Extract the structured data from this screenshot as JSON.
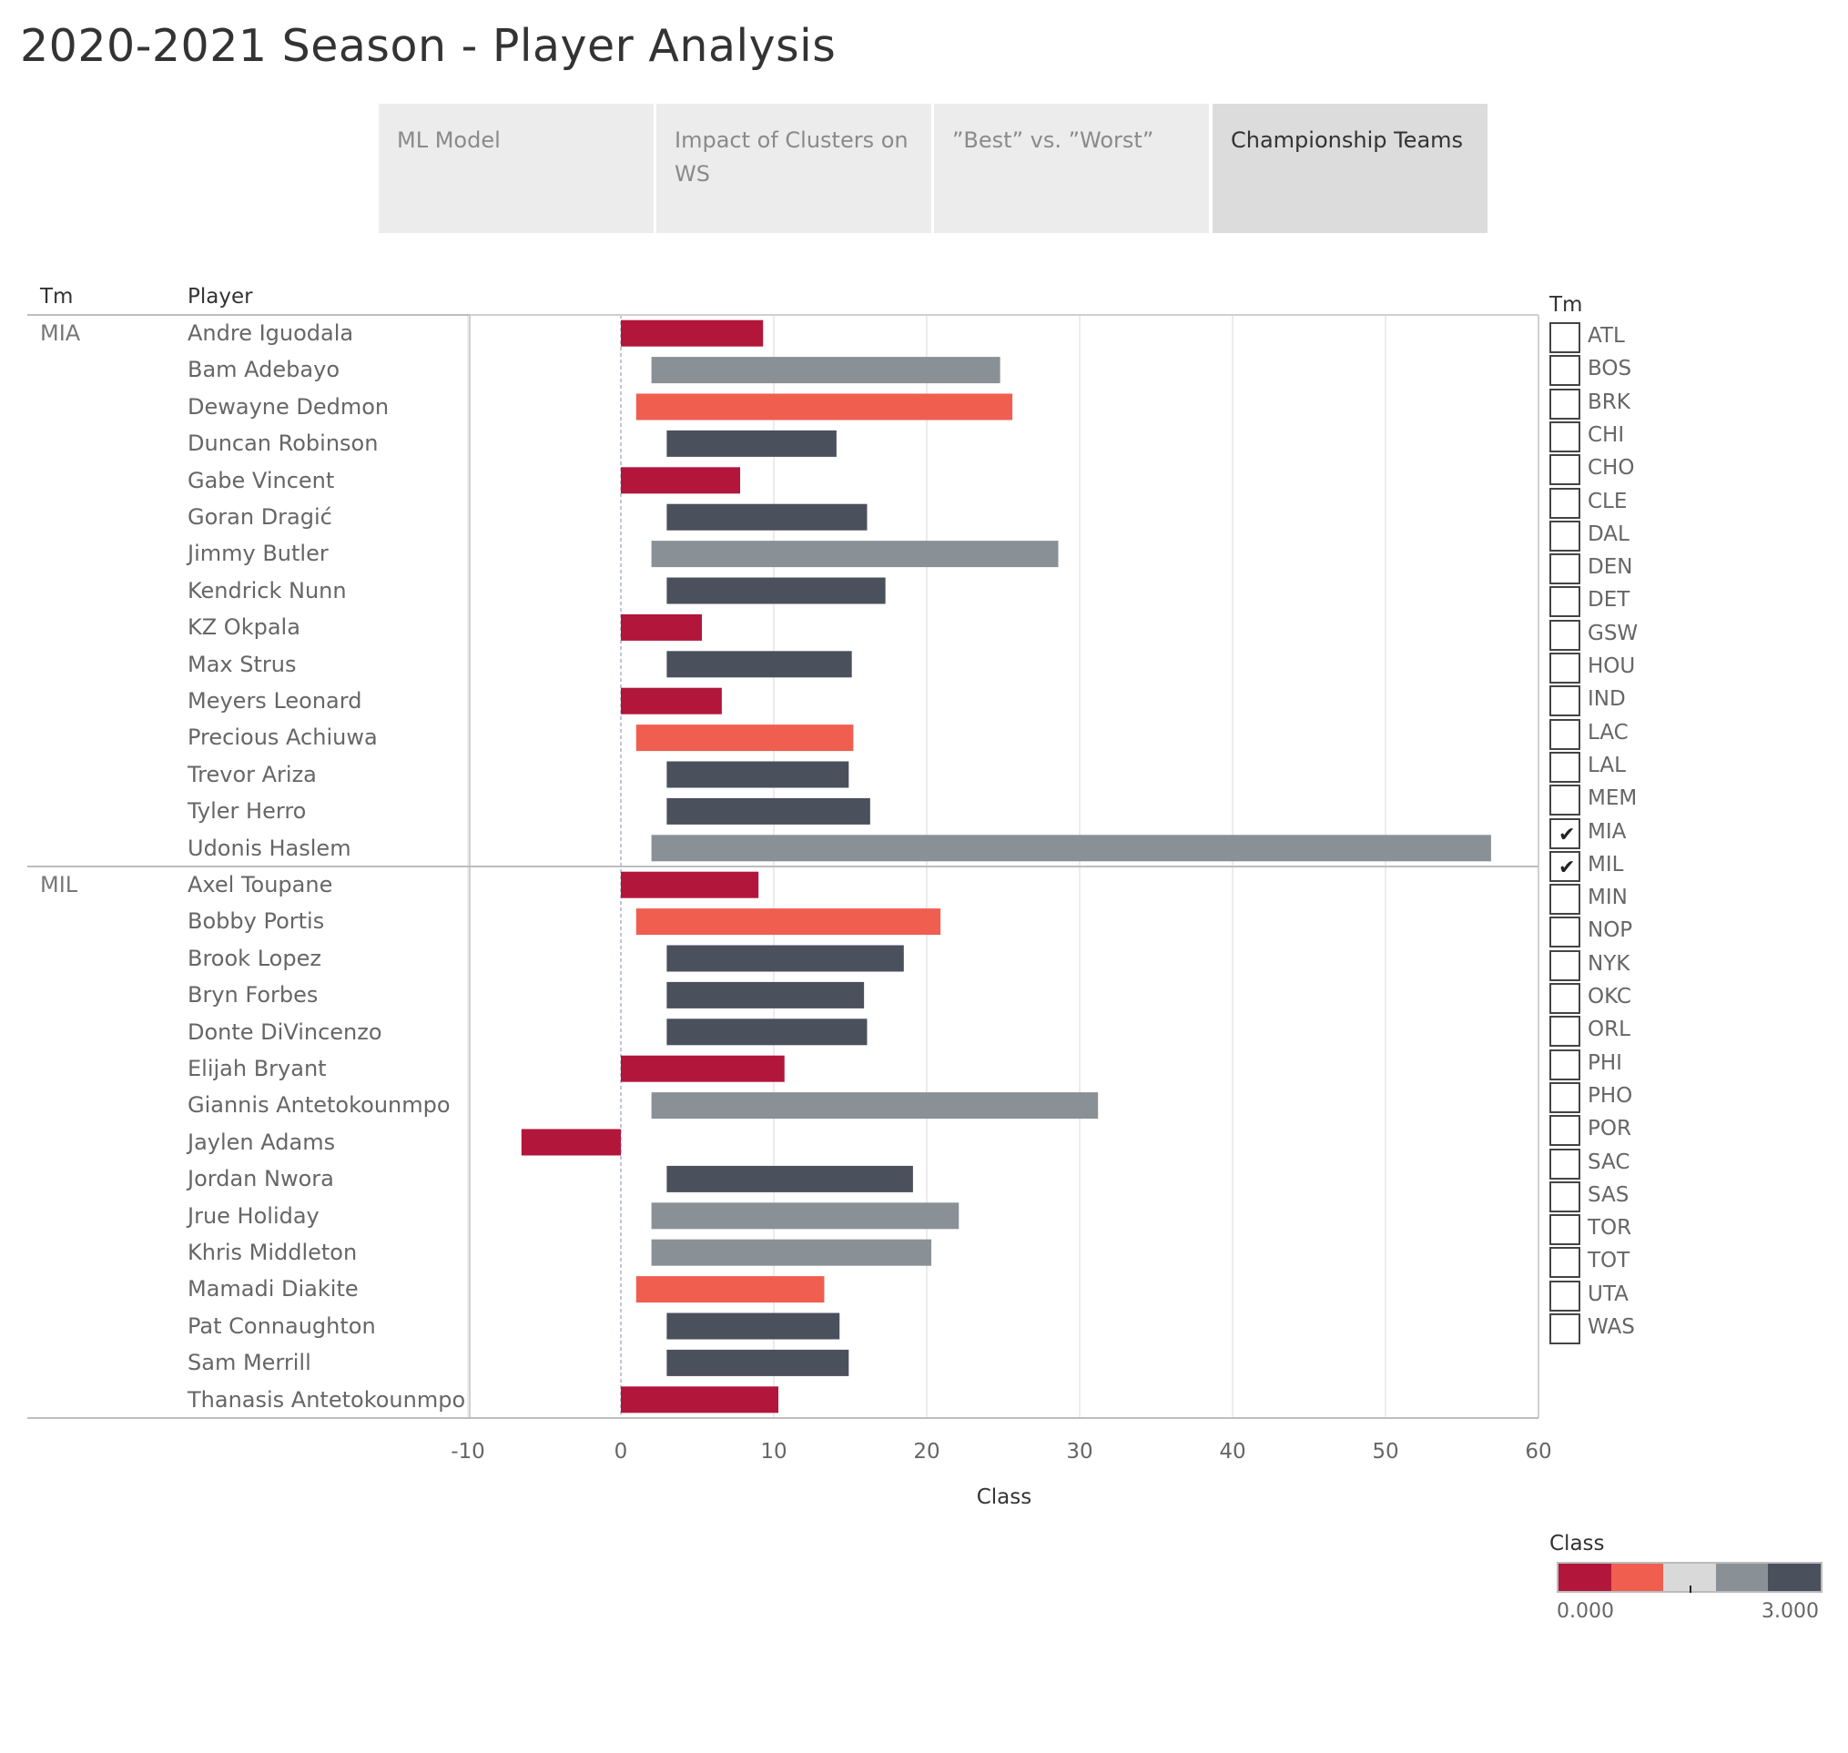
{
  "page": {
    "title": "2020-2021 Season - Player Analysis"
  },
  "tabs": [
    {
      "label": "ML Model",
      "active": false
    },
    {
      "label": "Impact of Clusters on WS",
      "active": false
    },
    {
      "label": "”Best” vs. ”Worst”",
      "active": false
    },
    {
      "label": "Championship Teams",
      "active": true
    }
  ],
  "table_headers": {
    "tm": "Tm",
    "player": "Player"
  },
  "colors": {
    "0": "#b3163b",
    "1": "#f05e50",
    "2": "#8a9196",
    "3": "#4a505c"
  },
  "chart_data": {
    "type": "bar",
    "orientation": "horizontal",
    "xlabel": "Class",
    "xlim": [
      -10,
      60
    ],
    "xticks": [
      "-10",
      "0",
      "10",
      "20",
      "30",
      "40",
      "50",
      "60"
    ],
    "groups": [
      {
        "team": "MIA",
        "players": [
          {
            "name": "Andre Iguodala",
            "start": 0,
            "end": 9.3,
            "class": 0
          },
          {
            "name": "Bam Adebayo",
            "start": 2,
            "end": 24.8,
            "class": 2
          },
          {
            "name": "Dewayne Dedmon",
            "start": 1,
            "end": 25.6,
            "class": 1
          },
          {
            "name": "Duncan Robinson",
            "start": 3,
            "end": 14.1,
            "class": 3
          },
          {
            "name": "Gabe Vincent",
            "start": 0,
            "end": 7.8,
            "class": 0
          },
          {
            "name": "Goran Dragić",
            "start": 3,
            "end": 16.1,
            "class": 3
          },
          {
            "name": "Jimmy Butler",
            "start": 2,
            "end": 28.6,
            "class": 2
          },
          {
            "name": "Kendrick Nunn",
            "start": 3,
            "end": 17.3,
            "class": 3
          },
          {
            "name": "KZ Okpala",
            "start": 0,
            "end": 5.3,
            "class": 0
          },
          {
            "name": "Max Strus",
            "start": 3,
            "end": 15.1,
            "class": 3
          },
          {
            "name": "Meyers Leonard",
            "start": 0,
            "end": 6.6,
            "class": 0
          },
          {
            "name": "Precious Achiuwa",
            "start": 1,
            "end": 15.2,
            "class": 1
          },
          {
            "name": "Trevor Ariza",
            "start": 3,
            "end": 14.9,
            "class": 3
          },
          {
            "name": "Tyler Herro",
            "start": 3,
            "end": 16.3,
            "class": 3
          },
          {
            "name": "Udonis Haslem",
            "start": 2,
            "end": 56.9,
            "class": 2
          }
        ]
      },
      {
        "team": "MIL",
        "players": [
          {
            "name": "Axel Toupane",
            "start": 0,
            "end": 9.0,
            "class": 0
          },
          {
            "name": "Bobby Portis",
            "start": 1,
            "end": 20.9,
            "class": 1
          },
          {
            "name": "Brook Lopez",
            "start": 3,
            "end": 18.5,
            "class": 3
          },
          {
            "name": "Bryn Forbes",
            "start": 3,
            "end": 15.9,
            "class": 3
          },
          {
            "name": "Donte DiVincenzo",
            "start": 3,
            "end": 16.1,
            "class": 3
          },
          {
            "name": "Elijah Bryant",
            "start": 0,
            "end": 10.7,
            "class": 0
          },
          {
            "name": "Giannis Antetokounmpo",
            "start": 2,
            "end": 31.2,
            "class": 2
          },
          {
            "name": "Jaylen Adams",
            "start": -6.5,
            "end": 0,
            "class": 0
          },
          {
            "name": "Jordan Nwora",
            "start": 3,
            "end": 19.1,
            "class": 3
          },
          {
            "name": "Jrue Holiday",
            "start": 2,
            "end": 22.1,
            "class": 2
          },
          {
            "name": "Khris Middleton",
            "start": 2,
            "end": 20.3,
            "class": 2
          },
          {
            "name": "Mamadi Diakite",
            "start": 1,
            "end": 13.3,
            "class": 1
          },
          {
            "name": "Pat Connaughton",
            "start": 3,
            "end": 14.3,
            "class": 3
          },
          {
            "name": "Sam Merrill",
            "start": 3,
            "end": 14.9,
            "class": 3
          },
          {
            "name": "Thanasis Antetokounmpo",
            "start": 0,
            "end": 10.3,
            "class": 0
          }
        ]
      }
    ]
  },
  "filter": {
    "title": "Tm",
    "items": [
      {
        "label": "ATL",
        "checked": false
      },
      {
        "label": "BOS",
        "checked": false
      },
      {
        "label": "BRK",
        "checked": false
      },
      {
        "label": "CHI",
        "checked": false
      },
      {
        "label": "CHO",
        "checked": false
      },
      {
        "label": "CLE",
        "checked": false
      },
      {
        "label": "DAL",
        "checked": false
      },
      {
        "label": "DEN",
        "checked": false
      },
      {
        "label": "DET",
        "checked": false
      },
      {
        "label": "GSW",
        "checked": false
      },
      {
        "label": "HOU",
        "checked": false
      },
      {
        "label": "IND",
        "checked": false
      },
      {
        "label": "LAC",
        "checked": false
      },
      {
        "label": "LAL",
        "checked": false
      },
      {
        "label": "MEM",
        "checked": false
      },
      {
        "label": "MIA",
        "checked": true
      },
      {
        "label": "MIL",
        "checked": true
      },
      {
        "label": "MIN",
        "checked": false
      },
      {
        "label": "NOP",
        "checked": false
      },
      {
        "label": "NYK",
        "checked": false
      },
      {
        "label": "OKC",
        "checked": false
      },
      {
        "label": "ORL",
        "checked": false
      },
      {
        "label": "PHI",
        "checked": false
      },
      {
        "label": "PHO",
        "checked": false
      },
      {
        "label": "POR",
        "checked": false
      },
      {
        "label": "SAC",
        "checked": false
      },
      {
        "label": "SAS",
        "checked": false
      },
      {
        "label": "TOR",
        "checked": false
      },
      {
        "label": "TOT",
        "checked": false
      },
      {
        "label": "UTA",
        "checked": false
      },
      {
        "label": "WAS",
        "checked": false
      }
    ],
    "check_glyph": "✔"
  },
  "legend": {
    "title": "Class",
    "min_label": "0.000",
    "max_label": "3.000",
    "colors": [
      "#b3163b",
      "#f05e50",
      "#d9d9d9",
      "#8a9196",
      "#4a505c"
    ]
  }
}
